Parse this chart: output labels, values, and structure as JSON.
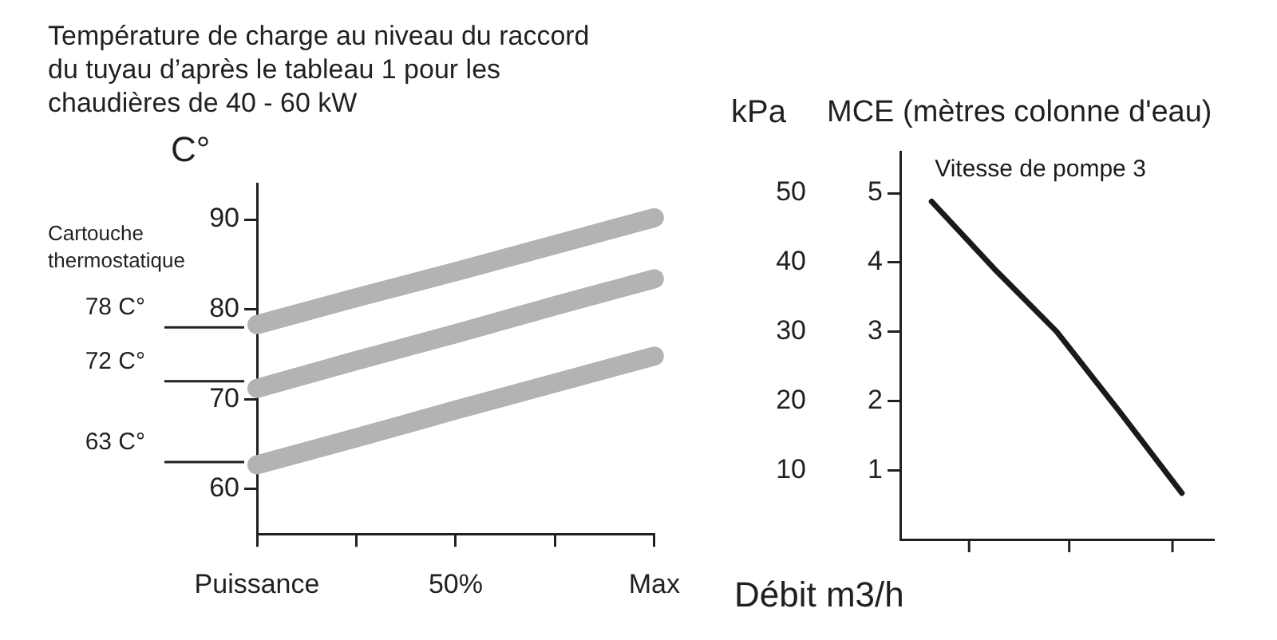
{
  "chart_data": [
    {
      "type": "line",
      "title": "Température de charge au niveau du raccord du tuyau d’après le tableau 1 pour les chaudières de 40 - 60 kW",
      "ylabel": "C°",
      "annotations": [
        "Cartouche thermostatique"
      ],
      "categories": [
        "Puissance",
        null,
        "50%",
        null,
        "Max"
      ],
      "ylim": [
        55,
        94
      ],
      "yticks": [
        60,
        70,
        80,
        90
      ],
      "grid": false,
      "legend": false,
      "marker": "none",
      "line_style": "solid",
      "series": [
        {
          "color": "#b3b3b3",
          "values": [
            78.3,
            81.3,
            84.2,
            87.2,
            90.2
          ]
        },
        {
          "color": "#b3b3b3",
          "values": [
            71.2,
            74.3,
            77.3,
            80.4,
            83.4
          ]
        },
        {
          "color": "#b3b3b3",
          "values": [
            62.7,
            65.7,
            68.8,
            71.8,
            74.8
          ]
        }
      ],
      "ref_lines": [
        {
          "axis": "y",
          "value": 78,
          "label": "78 C°",
          "color": "#231f20"
        },
        {
          "axis": "y",
          "value": 72,
          "label": "72 C°",
          "color": "#231f20"
        },
        {
          "axis": "y",
          "value": 63,
          "label": "63 C°",
          "color": "#231f20"
        }
      ]
    },
    {
      "type": "line",
      "xlabel": "Débit m3/h",
      "ylabel": "MCE (mètres colonne d'eau)",
      "y2label": "kPa",
      "categories": [
        null,
        null,
        null,
        null,
        null
      ],
      "ylim": [
        0,
        5.6
      ],
      "yticks": [
        1,
        2,
        3,
        4,
        5
      ],
      "y2lim": [
        0,
        56
      ],
      "y2ticks": [
        10,
        20,
        30,
        40,
        50
      ],
      "tick_labels": "y",
      "grid": false,
      "legend": false,
      "marker": "none",
      "line_style": "solid",
      "series": [
        {
          "name": "Vitesse de pompe 3",
          "color": "#1a1a1a",
          "values": [
            4.88,
            3.91,
            3.0,
            1.85,
            0.67
          ]
        }
      ]
    }
  ]
}
